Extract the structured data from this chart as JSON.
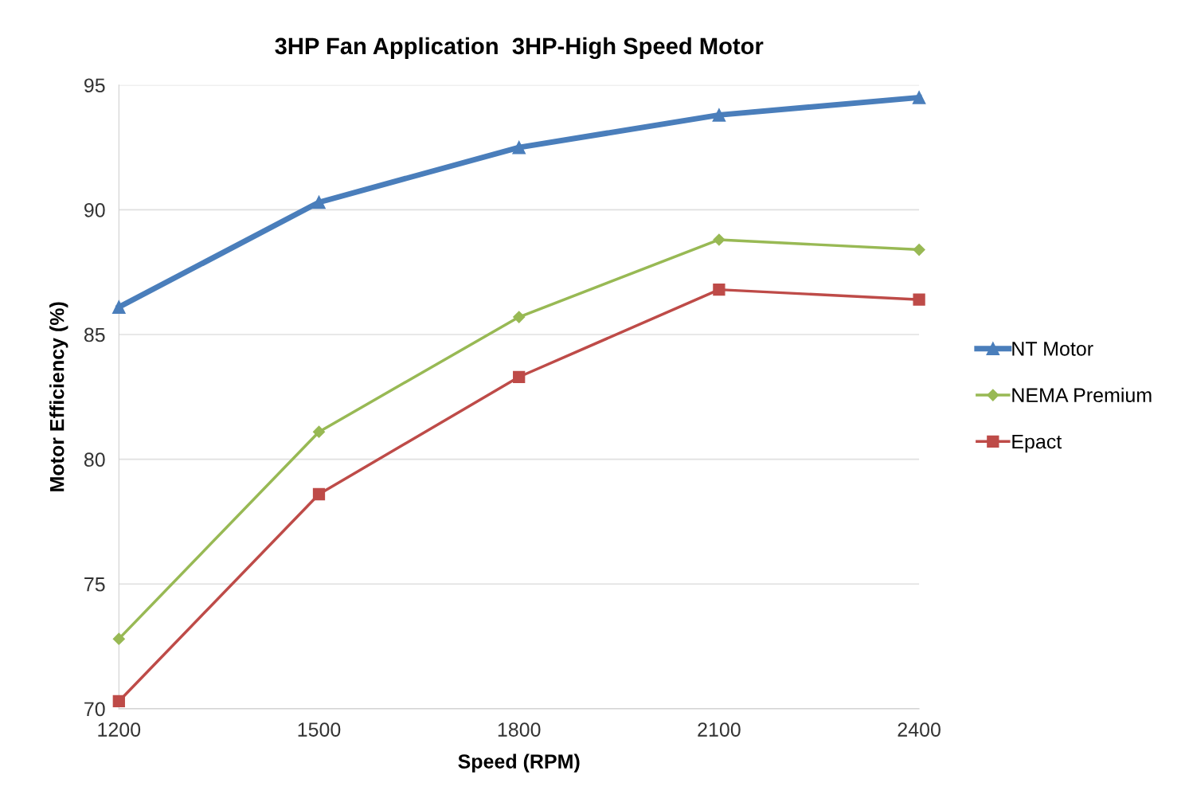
{
  "chart_data": {
    "type": "line",
    "title": "3HP Fan Application  3HP-High Speed Motor",
    "xlabel": "Speed (RPM)",
    "ylabel": "Motor Efficiency (%)",
    "x": [
      1200,
      1500,
      1800,
      2100,
      2400
    ],
    "series": [
      {
        "name": "NT Motor",
        "color": "#4a7ebb",
        "marker": "triangle",
        "values": [
          86.1,
          90.3,
          92.5,
          93.8,
          94.5
        ]
      },
      {
        "name": "NEMA Premium",
        "color": "#98b954",
        "marker": "diamond",
        "values": [
          72.8,
          81.1,
          85.7,
          88.8,
          88.4
        ]
      },
      {
        "name": "Epact",
        "color": "#be4b48",
        "marker": "square",
        "values": [
          70.3,
          78.6,
          83.3,
          86.8,
          86.4
        ]
      }
    ],
    "xlim": [
      1200,
      2400
    ],
    "xticks": [
      1200,
      1500,
      1800,
      2100,
      2400
    ],
    "ylim": [
      70,
      95
    ],
    "yticks": [
      70,
      75,
      80,
      85,
      90,
      95
    ],
    "grid": "y",
    "legend": "right",
    "line_style": "solid"
  }
}
